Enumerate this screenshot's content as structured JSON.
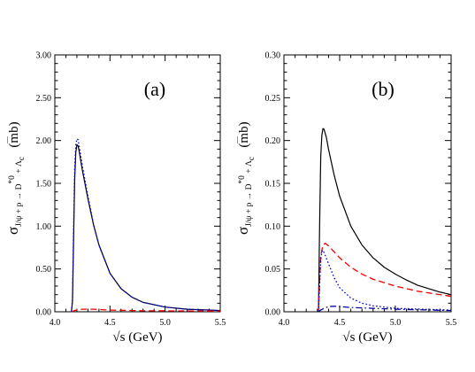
{
  "chart_data": [
    {
      "type": "line",
      "panel_label": "(a)",
      "xlabel": "√s   (GeV)",
      "ylabel": "σ J/ψ + p → D̄*0 + Λc   (mb)",
      "ylabel_parts": {
        "symbol": "σ",
        "reaction": "J/ψ + p → D",
        "antiparticle_mark": "—",
        "star0": "*0",
        "rest": " + Λ",
        "lambda_sub": "c",
        "unit": "(mb)"
      },
      "xlim": [
        4.0,
        5.5
      ],
      "ylim": [
        0.0,
        3.0
      ],
      "x_ticks": [
        "4.0",
        "4.5",
        "5.0",
        "5.5"
      ],
      "y_ticks": [
        "0.00",
        "0.50",
        "1.00",
        "1.50",
        "2.00",
        "2.50",
        "3.00"
      ],
      "series": [
        {
          "color": "#000000",
          "style": "solid",
          "points": [
            [
              4.15,
              0.0
            ],
            [
              4.16,
              0.12
            ],
            [
              4.17,
              0.85
            ],
            [
              4.18,
              1.55
            ],
            [
              4.19,
              1.86
            ],
            [
              4.2,
              1.95
            ],
            [
              4.21,
              1.94
            ],
            [
              4.22,
              1.88
            ],
            [
              4.25,
              1.65
            ],
            [
              4.3,
              1.32
            ],
            [
              4.35,
              1.02
            ],
            [
              4.4,
              0.78
            ],
            [
              4.5,
              0.45
            ],
            [
              4.6,
              0.27
            ],
            [
              4.7,
              0.17
            ],
            [
              4.8,
              0.11
            ],
            [
              5.0,
              0.055
            ],
            [
              5.2,
              0.03
            ],
            [
              5.5,
              0.015
            ]
          ]
        },
        {
          "color": "#0000ee",
          "style": "dotted",
          "points": [
            [
              4.15,
              0.0
            ],
            [
              4.16,
              0.15
            ],
            [
              4.17,
              0.95
            ],
            [
              4.18,
              1.68
            ],
            [
              4.19,
              1.95
            ],
            [
              4.2,
              2.02
            ],
            [
              4.21,
              2.01
            ],
            [
              4.22,
              1.94
            ],
            [
              4.25,
              1.7
            ],
            [
              4.3,
              1.35
            ],
            [
              4.35,
              1.03
            ],
            [
              4.4,
              0.78
            ],
            [
              4.5,
              0.45
            ],
            [
              4.6,
              0.27
            ],
            [
              4.7,
              0.17
            ],
            [
              4.8,
              0.11
            ],
            [
              5.0,
              0.055
            ],
            [
              5.2,
              0.03
            ],
            [
              5.5,
              0.015
            ]
          ]
        },
        {
          "color": "#ee0000",
          "style": "dashed",
          "points": [
            [
              4.15,
              0.0
            ],
            [
              4.18,
              0.015
            ],
            [
              4.25,
              0.03
            ],
            [
              4.35,
              0.03
            ],
            [
              4.5,
              0.02
            ],
            [
              4.8,
              0.012
            ],
            [
              5.5,
              0.008
            ]
          ]
        }
      ]
    },
    {
      "type": "line",
      "panel_label": "(b)",
      "xlabel": "√s   (GeV)",
      "ylabel": "σ J/ψ + p → D̄*0 + Λc   (mb)",
      "ylabel_parts": {
        "symbol": "σ",
        "reaction": "J/ψ + p → D",
        "antiparticle_mark": "—",
        "star0": "*0",
        "rest": " + Λ",
        "lambda_sub": "c",
        "unit": "(mb)"
      },
      "xlim": [
        4.0,
        5.5
      ],
      "ylim": [
        0.0,
        0.3
      ],
      "x_ticks": [
        "4.0",
        "4.5",
        "5.0",
        "5.5"
      ],
      "y_ticks": [
        "0.00",
        "0.05",
        "0.10",
        "0.15",
        "0.20",
        "0.25",
        "0.30"
      ],
      "series": [
        {
          "color": "#000000",
          "style": "solid",
          "points": [
            [
              4.31,
              0.0
            ],
            [
              4.32,
              0.1
            ],
            [
              4.33,
              0.18
            ],
            [
              4.34,
              0.206
            ],
            [
              4.35,
              0.214
            ],
            [
              4.36,
              0.213
            ],
            [
              4.38,
              0.204
            ],
            [
              4.4,
              0.19
            ],
            [
              4.45,
              0.16
            ],
            [
              4.5,
              0.135
            ],
            [
              4.6,
              0.1
            ],
            [
              4.7,
              0.078
            ],
            [
              4.8,
              0.063
            ],
            [
              4.9,
              0.052
            ],
            [
              5.0,
              0.044
            ],
            [
              5.1,
              0.037
            ],
            [
              5.2,
              0.031
            ],
            [
              5.3,
              0.027
            ],
            [
              5.4,
              0.023
            ],
            [
              5.5,
              0.02
            ]
          ]
        },
        {
          "color": "#ee0000",
          "style": "dashed",
          "points": [
            [
              4.31,
              0.0
            ],
            [
              4.32,
              0.035
            ],
            [
              4.33,
              0.065
            ],
            [
              4.35,
              0.078
            ],
            [
              4.37,
              0.08
            ],
            [
              4.4,
              0.077
            ],
            [
              4.45,
              0.07
            ],
            [
              4.5,
              0.063
            ],
            [
              4.6,
              0.052
            ],
            [
              4.7,
              0.044
            ],
            [
              4.8,
              0.038
            ],
            [
              5.0,
              0.03
            ],
            [
              5.2,
              0.024
            ],
            [
              5.5,
              0.018
            ]
          ]
        },
        {
          "color": "#0000ee",
          "style": "dotted",
          "points": [
            [
              4.31,
              0.0
            ],
            [
              4.32,
              0.03
            ],
            [
              4.33,
              0.06
            ],
            [
              4.34,
              0.07
            ],
            [
              4.35,
              0.072
            ],
            [
              4.37,
              0.066
            ],
            [
              4.4,
              0.056
            ],
            [
              4.45,
              0.04
            ],
            [
              4.5,
              0.028
            ],
            [
              4.6,
              0.016
            ],
            [
              4.7,
              0.01
            ],
            [
              4.8,
              0.007
            ],
            [
              5.0,
              0.004
            ],
            [
              5.5,
              0.002
            ]
          ]
        },
        {
          "color": "#0000aa",
          "style": "dashdot",
          "points": [
            [
              4.31,
              0.0
            ],
            [
              4.33,
              0.002
            ],
            [
              4.36,
              0.004
            ],
            [
              4.4,
              0.006
            ],
            [
              4.45,
              0.0065
            ],
            [
              4.5,
              0.006
            ],
            [
              4.6,
              0.005
            ],
            [
              4.8,
              0.004
            ],
            [
              5.0,
              0.003
            ],
            [
              5.5,
              0.0015
            ]
          ]
        }
      ]
    }
  ]
}
